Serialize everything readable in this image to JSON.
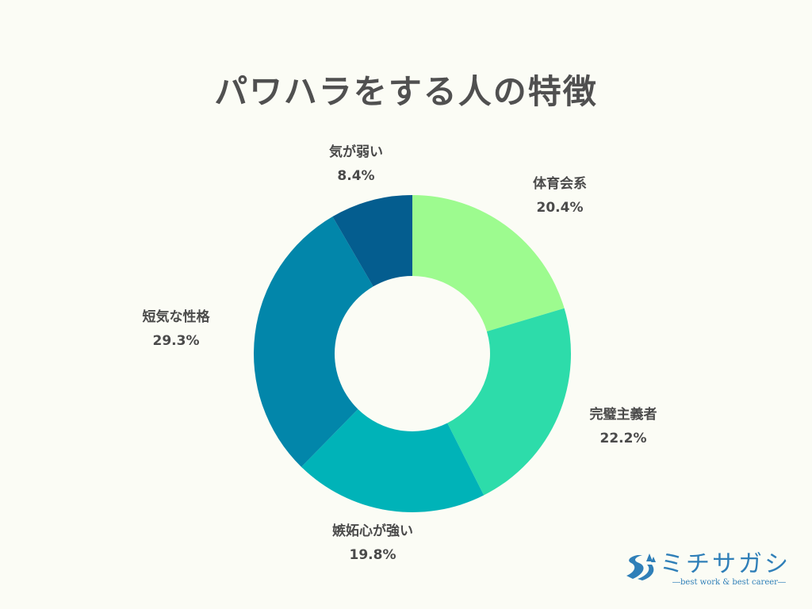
{
  "colors": {
    "background": "#fbfcf5",
    "title": "#505050",
    "label": "#4a4a4a",
    "brand": "#2f7fb8"
  },
  "chart_data": {
    "type": "pie",
    "title": "パワハラをする人の特徴",
    "donut": true,
    "slices": [
      {
        "label": "体育会系",
        "value": 20.4,
        "display": "20.4%",
        "color": "#9dfb8f"
      },
      {
        "label": "完璧主義者",
        "value": 22.2,
        "display": "22.2%",
        "color": "#2ddcaa"
      },
      {
        "label": "嫉妬心が強い",
        "value": 19.8,
        "display": "19.8%",
        "color": "#00b3b8"
      },
      {
        "label": "短気な性格",
        "value": 29.3,
        "display": "29.3%",
        "color": "#0286aa"
      },
      {
        "label": "気が弱い",
        "value": 8.4,
        "display": "8.4%",
        "color": "#045d8f"
      }
    ]
  },
  "logo": {
    "name": "ミチサガシ",
    "tagline": "―best work & best career―"
  }
}
